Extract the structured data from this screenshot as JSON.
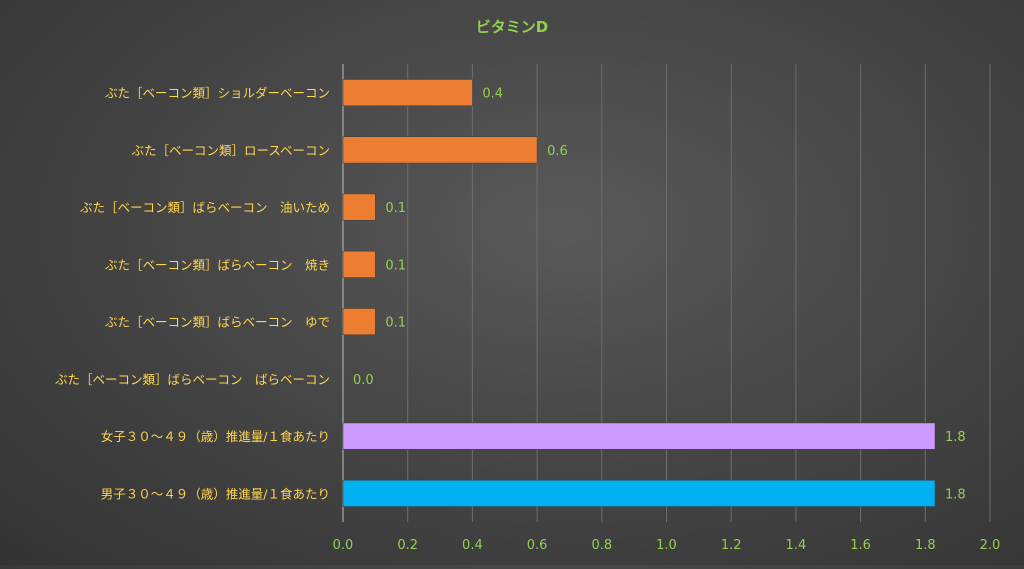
{
  "colors": {
    "title": "#92D050",
    "value_label": "#92D050",
    "tick_label": "#92D050",
    "category_label": "#FFD54F",
    "grid": "#6E6E6E",
    "axis": "#BFBFBF",
    "orange": "#ED7D31",
    "violet": "#CC99FF",
    "cyan": "#00B0F0"
  },
  "chart_data": {
    "type": "bar",
    "orientation": "horizontal",
    "title": "ビタミンD",
    "xlabel": "",
    "ylabel": "",
    "xlim": [
      0,
      2.0
    ],
    "x_ticks": [
      "0.0",
      "0.2",
      "0.4",
      "0.6",
      "0.8",
      "1.0",
      "1.2",
      "1.4",
      "1.6",
      "1.8",
      "2.0"
    ],
    "grid": "vertical",
    "legend": "none",
    "categories": [
      "ぶた［ベーコン類］ショルダーベーコン",
      "ぶた［ベーコン類］ロースベーコン",
      "ぶた［ベーコン類］ばらベーコン　油いため",
      "ぶた［ベーコン類］ばらベーコン　焼き",
      "ぶた［ベーコン類］ばらベーコン　ゆで",
      "ぶた［ベーコン類］ばらベーコン　ばらベーコン",
      "女子３０～４９（歳）推進量/１食あたり",
      "男子３０～４９（歳）推進量/１食あたり"
    ],
    "values": [
      0.4,
      0.6,
      0.1,
      0.1,
      0.1,
      0.0,
      1.83,
      1.83
    ],
    "value_labels": [
      "0.4",
      "0.6",
      "0.1",
      "0.1",
      "0.1",
      "0.0",
      "1.8",
      "1.8"
    ],
    "bar_colors": [
      "orange",
      "orange",
      "orange",
      "orange",
      "orange",
      "orange",
      "violet",
      "cyan"
    ]
  }
}
